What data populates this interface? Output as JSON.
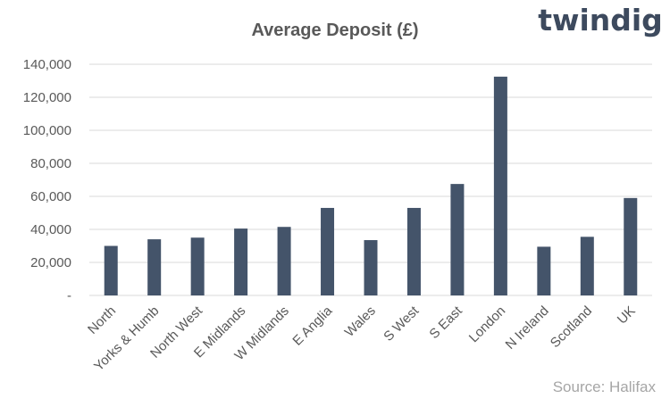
{
  "brand": "twindig",
  "source": "Source: Halifax",
  "chart_data": {
    "type": "bar",
    "title": "Average Deposit (£)",
    "xlabel": "",
    "ylabel": "",
    "categories": [
      "North",
      "Yorks & Humb",
      "North West",
      "E Midlands",
      "W Midlands",
      "E Anglia",
      "Wales",
      "S West",
      "S East",
      "London",
      "N Ireland",
      "Scotland",
      "UK"
    ],
    "values": [
      30000,
      34000,
      35000,
      40500,
      41500,
      53000,
      33500,
      53000,
      67500,
      132500,
      29500,
      35500,
      59000
    ],
    "ylim": [
      0,
      140000
    ],
    "yticks": [
      0,
      20000,
      40000,
      60000,
      80000,
      100000,
      120000,
      140000
    ],
    "ytick_labels": [
      "-",
      "20,000",
      "40,000",
      "60,000",
      "80,000",
      "100,000",
      "120,000",
      "140,000"
    ],
    "grid": true,
    "bar_color": "#44546a",
    "grid_color": "#d9d9d9"
  }
}
